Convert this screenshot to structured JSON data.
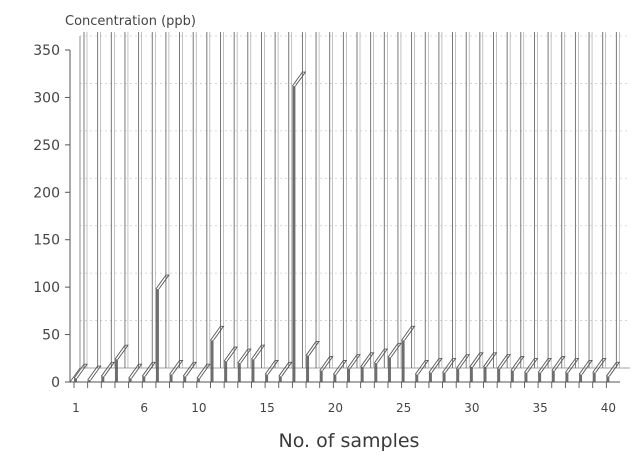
{
  "chart_data": {
    "type": "bar",
    "title": "",
    "ylabel": "Concentration (ppb)",
    "xlabel": "No. of samples",
    "ylim": [
      0,
      350
    ],
    "yticks": [
      0,
      50,
      100,
      150,
      200,
      250,
      300,
      350
    ],
    "xticks": [
      1,
      6,
      10,
      15,
      20,
      25,
      30,
      35,
      40
    ],
    "grid": true,
    "bar_style": "3d-thin-column",
    "bar_color": "#555555",
    "categories": [
      1,
      2,
      3,
      4,
      5,
      6,
      7,
      8,
      9,
      10,
      11,
      12,
      13,
      14,
      15,
      16,
      17,
      18,
      19,
      20,
      21,
      22,
      23,
      24,
      25,
      26,
      27,
      28,
      29,
      30,
      31,
      32,
      33,
      34,
      35,
      36,
      37,
      38,
      39,
      40
    ],
    "values": [
      4,
      2,
      6,
      24,
      4,
      6,
      98,
      8,
      6,
      4,
      44,
      22,
      20,
      24,
      8,
      6,
      312,
      28,
      12,
      8,
      14,
      16,
      20,
      26,
      44,
      8,
      10,
      10,
      14,
      16,
      16,
      14,
      12,
      10,
      10,
      12,
      10,
      8,
      10,
      6
    ]
  },
  "labels": {
    "ylabel": "Concentration (ppb)",
    "xlabel": "No. of samples"
  }
}
